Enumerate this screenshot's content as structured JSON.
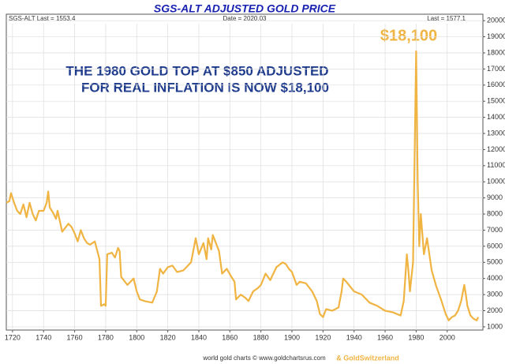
{
  "chart_data": {
    "type": "line",
    "title": "SGS-ALT ADJUSTED  GOLD PRICE",
    "header_left": "SGS-ALT Last = 1553.4",
    "header_center": "Date = 2020.03",
    "header_right": "Last = 1577.1",
    "annotation_lines": [
      "THE 1980 GOLD TOP AT $850 ADJUSTED",
      "FOR REAL INFLATION IS NOW $18,100"
    ],
    "peak_label": "$18,100",
    "source": "world gold charts © www.goldchartsrus.com",
    "source_brand": "& GoldSwitzerland",
    "color": "#f0b443",
    "grid": true,
    "xlim": [
      1716,
      2023
    ],
    "xticks": [
      1720,
      1740,
      1760,
      1780,
      1800,
      1820,
      1840,
      1860,
      1880,
      1900,
      1920,
      1940,
      1960,
      1980,
      2000
    ],
    "ylim": [
      800,
      20400
    ],
    "yticks": [
      1000,
      2000,
      3000,
      4000,
      5000,
      6000,
      7000,
      8000,
      9000,
      10000,
      11000,
      12000,
      13000,
      14000,
      15000,
      16000,
      17000,
      18000,
      19000,
      20000
    ],
    "x": [
      1716,
      1718,
      1719,
      1721,
      1723,
      1725,
      1727,
      1729,
      1731,
      1733,
      1735,
      1737,
      1740,
      1742,
      1743,
      1744,
      1746,
      1748,
      1749,
      1752,
      1756,
      1758,
      1760,
      1762,
      1764,
      1766,
      1768,
      1770,
      1773,
      1776,
      1777,
      1779,
      1780,
      1781,
      1784,
      1786,
      1788,
      1789,
      1790,
      1794,
      1798,
      1800,
      1802,
      1805,
      1810,
      1813,
      1815,
      1817,
      1820,
      1823,
      1826,
      1830,
      1835,
      1838,
      1840,
      1843,
      1845,
      1846,
      1848,
      1849,
      1851,
      1853,
      1855,
      1858,
      1861,
      1863,
      1864,
      1867,
      1870,
      1872,
      1875,
      1878,
      1880,
      1883,
      1886,
      1890,
      1894,
      1896,
      1898,
      1900,
      1903,
      1905,
      1909,
      1913,
      1916,
      1918,
      1920,
      1922,
      1926,
      1930,
      1932,
      1933,
      1935,
      1940,
      1945,
      1950,
      1955,
      1960,
      1965,
      1970,
      1972,
      1974,
      1975,
      1976,
      1978,
      1980,
      1981,
      1982,
      1983,
      1985,
      1987,
      1990,
      1993,
      1996,
      1999,
      2001,
      2003,
      2005,
      2007,
      2009,
      2011,
      2012,
      2013,
      2015,
      2017,
      2019,
      2020
    ],
    "values": [
      8700,
      8800,
      9300,
      8700,
      8200,
      8000,
      8600,
      7800,
      8700,
      8000,
      7600,
      8200,
      8200,
      8700,
      9400,
      8400,
      8100,
      7700,
      8200,
      6900,
      7400,
      7200,
      6800,
      6300,
      7000,
      6500,
      6200,
      6100,
      6300,
      5200,
      2300,
      2400,
      2300,
      5500,
      5600,
      5300,
      5900,
      5700,
      4100,
      3600,
      4000,
      3200,
      2700,
      2600,
      2500,
      3200,
      4600,
      4300,
      4700,
      4800,
      4400,
      4500,
      5000,
      6500,
      5500,
      6200,
      5200,
      6500,
      5800,
      6700,
      6200,
      5700,
      4300,
      4600,
      4100,
      3800,
      2700,
      3000,
      2800,
      2600,
      3200,
      3400,
      3600,
      4300,
      3900,
      4700,
      5000,
      4900,
      4600,
      4400,
      3600,
      3800,
      3700,
      3200,
      2600,
      1800,
      1600,
      2100,
      2000,
      2200,
      3200,
      4000,
      3800,
      3200,
      3000,
      2500,
      2300,
      2000,
      1900,
      1700,
      2600,
      5500,
      4500,
      3200,
      5000,
      18100,
      10000,
      6000,
      8000,
      5500,
      6500,
      4500,
      3500,
      2700,
      1800,
      1400,
      1600,
      1700,
      2000,
      2600,
      3600,
      3000,
      2300,
      1700,
      1500,
      1400,
      1600
    ]
  }
}
